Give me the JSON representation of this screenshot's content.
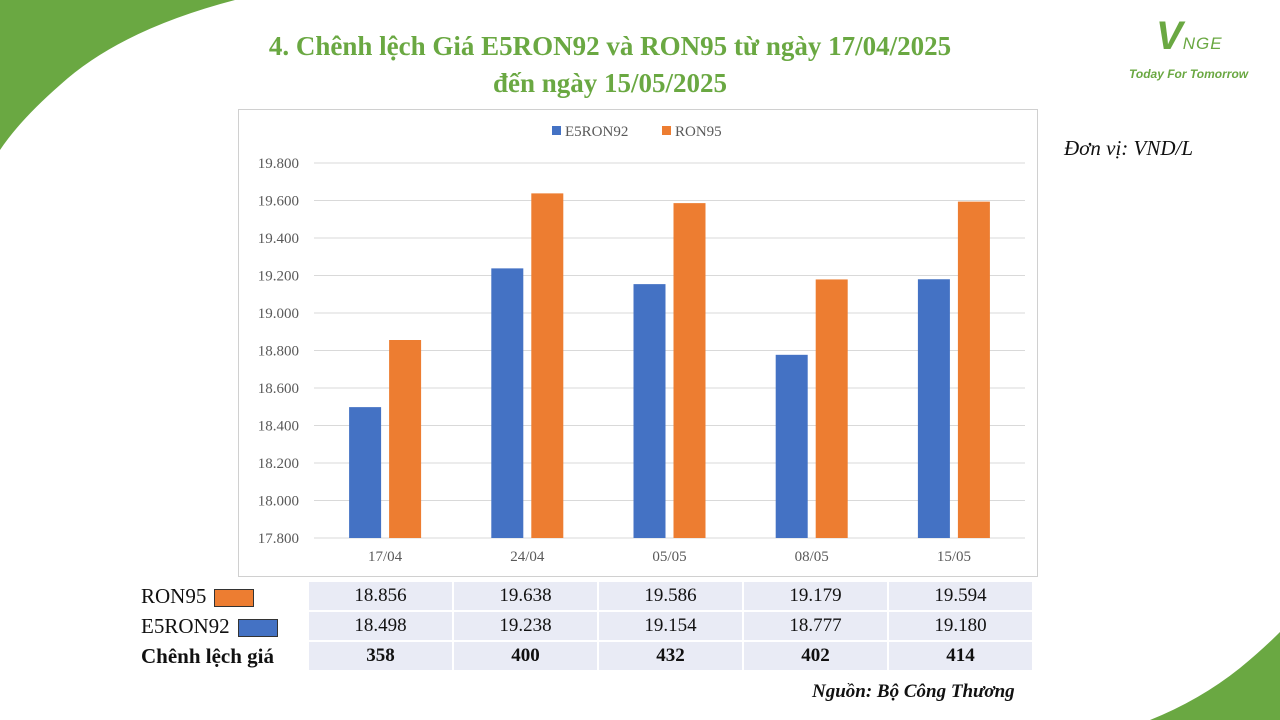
{
  "title_line1": "4. Chênh lệch Giá E5RON92 và RON95 từ ngày 17/04/2025",
  "title_line2": "đến ngày 15/05/2025",
  "logo": {
    "mark_v": "V",
    "mark_rest": "NGE",
    "tagline": "Today For Tomorrow"
  },
  "unit": "Đơn vị: VND/L",
  "colors": {
    "accent_green": "#6aa842",
    "e5ron92": "#4472c4",
    "ron95": "#ed7d31"
  },
  "chart_data": {
    "type": "bar",
    "categories": [
      "17/04",
      "24/04",
      "05/05",
      "08/05",
      "15/05"
    ],
    "series": [
      {
        "name": "E5RON92",
        "color": "#4472c4",
        "values": [
          18498,
          19238,
          19154,
          18777,
          19180
        ]
      },
      {
        "name": "RON95",
        "color": "#ed7d31",
        "values": [
          18856,
          19638,
          19586,
          19179,
          19594
        ]
      }
    ],
    "ylim": [
      17800,
      19800
    ],
    "yticks": [
      17800,
      18000,
      18200,
      18400,
      18600,
      18800,
      19000,
      19200,
      19400,
      19600,
      19800
    ],
    "ytick_labels": [
      "17.800",
      "18.000",
      "18.200",
      "18.400",
      "18.600",
      "18.800",
      "19.000",
      "19.200",
      "19.400",
      "19.600",
      "19.800"
    ],
    "grid": true,
    "legend_position": "top-center"
  },
  "table": {
    "rows": [
      {
        "label": "RON95",
        "swatch": "#ed7d31",
        "values": [
          "18.856",
          "19.638",
          "19.586",
          "19.179",
          "19.594"
        ]
      },
      {
        "label": "E5RON92",
        "swatch": "#4472c4",
        "values": [
          "18.498",
          "19.238",
          "19.154",
          "18.777",
          "19.180"
        ]
      },
      {
        "label": "Chênh lệch giá",
        "values": [
          "358",
          "400",
          "432",
          "402",
          "414"
        ]
      }
    ]
  },
  "source": "Nguồn: Bộ Công Thương"
}
